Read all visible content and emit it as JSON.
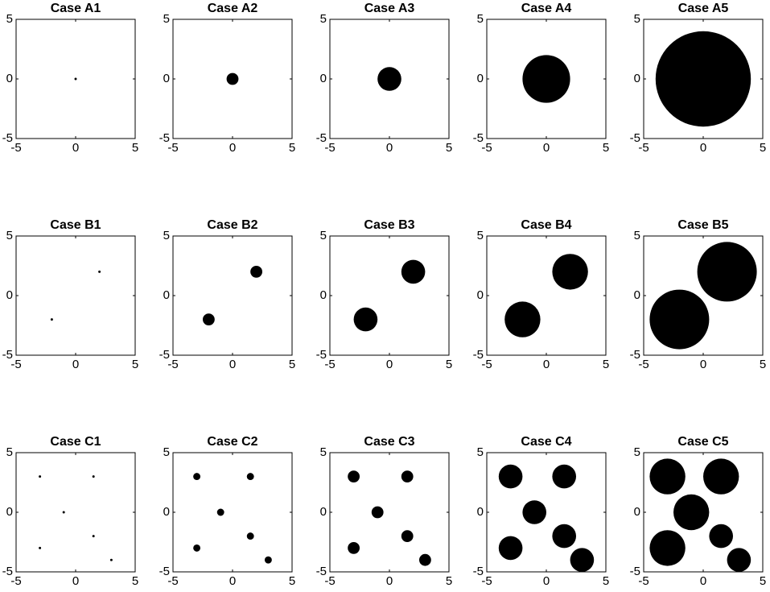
{
  "chart_data": [
    {
      "type": "scatter",
      "title": "Case A1",
      "x": [
        0
      ],
      "y": [
        0
      ],
      "sizes": [
        0.1
      ],
      "color": "#000000",
      "xlim": [
        -5,
        5
      ],
      "ylim": [
        -5,
        5
      ],
      "xticks": [
        -5,
        0,
        5
      ],
      "yticks": [
        -5,
        0,
        5
      ]
    },
    {
      "type": "scatter",
      "title": "Case A2",
      "x": [
        0
      ],
      "y": [
        0
      ],
      "sizes": [
        0.5
      ],
      "color": "#000000",
      "xlim": [
        -5,
        5
      ],
      "ylim": [
        -5,
        5
      ],
      "xticks": [
        -5,
        0,
        5
      ],
      "yticks": [
        -5,
        0,
        5
      ]
    },
    {
      "type": "scatter",
      "title": "Case A3",
      "x": [
        0
      ],
      "y": [
        0
      ],
      "sizes": [
        1
      ],
      "color": "#000000",
      "xlim": [
        -5,
        5
      ],
      "ylim": [
        -5,
        5
      ],
      "xticks": [
        -5,
        0,
        5
      ],
      "yticks": [
        -5,
        0,
        5
      ]
    },
    {
      "type": "scatter",
      "title": "Case A4",
      "x": [
        0
      ],
      "y": [
        0
      ],
      "sizes": [
        2
      ],
      "color": "#000000",
      "xlim": [
        -5,
        5
      ],
      "ylim": [
        -5,
        5
      ],
      "xticks": [
        -5,
        0,
        5
      ],
      "yticks": [
        -5,
        0,
        5
      ]
    },
    {
      "type": "scatter",
      "title": "Case A5",
      "x": [
        0
      ],
      "y": [
        0
      ],
      "sizes": [
        4
      ],
      "color": "#000000",
      "xlim": [
        -5,
        5
      ],
      "ylim": [
        -5,
        5
      ],
      "xticks": [
        -5,
        0,
        5
      ],
      "yticks": [
        -5,
        0,
        5
      ]
    },
    {
      "type": "scatter",
      "title": "Case B1",
      "x": [
        -2,
        2
      ],
      "y": [
        -2,
        2
      ],
      "sizes": [
        0.1,
        0.1
      ],
      "color": "#000000",
      "xlim": [
        -5,
        5
      ],
      "ylim": [
        -5,
        5
      ],
      "xticks": [
        -5,
        0,
        5
      ],
      "yticks": [
        -5,
        0,
        5
      ]
    },
    {
      "type": "scatter",
      "title": "Case B2",
      "x": [
        -2,
        2
      ],
      "y": [
        -2,
        2
      ],
      "sizes": [
        0.5,
        0.5
      ],
      "color": "#000000",
      "xlim": [
        -5,
        5
      ],
      "ylim": [
        -5,
        5
      ],
      "xticks": [
        -5,
        0,
        5
      ],
      "yticks": [
        -5,
        0,
        5
      ]
    },
    {
      "type": "scatter",
      "title": "Case B3",
      "x": [
        -2,
        2
      ],
      "y": [
        -2,
        2
      ],
      "sizes": [
        1,
        1
      ],
      "color": "#000000",
      "xlim": [
        -5,
        5
      ],
      "ylim": [
        -5,
        5
      ],
      "xticks": [
        -5,
        0,
        5
      ],
      "yticks": [
        -5,
        0,
        5
      ]
    },
    {
      "type": "scatter",
      "title": "Case B4",
      "x": [
        -2,
        2
      ],
      "y": [
        -2,
        2
      ],
      "sizes": [
        1.5,
        1.5
      ],
      "color": "#000000",
      "xlim": [
        -5,
        5
      ],
      "ylim": [
        -5,
        5
      ],
      "xticks": [
        -5,
        0,
        5
      ],
      "yticks": [
        -5,
        0,
        5
      ]
    },
    {
      "type": "scatter",
      "title": "Case B5",
      "x": [
        -2,
        2
      ],
      "y": [
        -2,
        2
      ],
      "sizes": [
        2.5,
        2.5
      ],
      "color": "#000000",
      "xlim": [
        -5,
        5
      ],
      "ylim": [
        -5,
        5
      ],
      "xticks": [
        -5,
        0,
        5
      ],
      "yticks": [
        -5,
        0,
        5
      ]
    },
    {
      "type": "scatter",
      "title": "Case C1",
      "x": [
        -3,
        1.5,
        -1,
        -3,
        1.5,
        3
      ],
      "y": [
        3,
        3,
        0,
        -3,
        -2,
        -4
      ],
      "sizes": [
        0.1,
        0.1,
        0.1,
        0.1,
        0.1,
        0.1
      ],
      "color": "#000000",
      "xlim": [
        -5,
        5
      ],
      "ylim": [
        -5,
        5
      ],
      "xticks": [
        -5,
        0,
        5
      ],
      "yticks": [
        -5,
        0,
        5
      ]
    },
    {
      "type": "scatter",
      "title": "Case C2",
      "x": [
        -3,
        1.5,
        -1,
        -3,
        1.5,
        3
      ],
      "y": [
        3,
        3,
        0,
        -3,
        -2,
        -4
      ],
      "sizes": [
        0.3,
        0.3,
        0.3,
        0.3,
        0.3,
        0.3
      ],
      "color": "#000000",
      "xlim": [
        -5,
        5
      ],
      "ylim": [
        -5,
        5
      ],
      "xticks": [
        -5,
        0,
        5
      ],
      "yticks": [
        -5,
        0,
        5
      ]
    },
    {
      "type": "scatter",
      "title": "Case C3",
      "x": [
        -3,
        1.5,
        -1,
        -3,
        1.5,
        3
      ],
      "y": [
        3,
        3,
        0,
        -3,
        -2,
        -4
      ],
      "sizes": [
        0.5,
        0.5,
        0.5,
        0.5,
        0.5,
        0.5
      ],
      "color": "#000000",
      "xlim": [
        -5,
        5
      ],
      "ylim": [
        -5,
        5
      ],
      "xticks": [
        -5,
        0,
        5
      ],
      "yticks": [
        -5,
        0,
        5
      ]
    },
    {
      "type": "scatter",
      "title": "Case C4",
      "x": [
        -3,
        1.5,
        -1,
        -3,
        1.5,
        3
      ],
      "y": [
        3,
        3,
        0,
        -3,
        -2,
        -4
      ],
      "sizes": [
        1,
        1,
        1,
        1,
        1,
        1
      ],
      "color": "#000000",
      "xlim": [
        -5,
        5
      ],
      "ylim": [
        -5,
        5
      ],
      "xticks": [
        -5,
        0,
        5
      ],
      "yticks": [
        -5,
        0,
        5
      ]
    },
    {
      "type": "scatter",
      "title": "Case C5",
      "x": [
        -3,
        1.5,
        -1,
        -3,
        1.5,
        3
      ],
      "y": [
        3,
        3,
        0,
        -3,
        -2,
        -4
      ],
      "sizes": [
        1.5,
        1.5,
        1.5,
        1.5,
        1,
        1
      ],
      "color": "#000000",
      "xlim": [
        -5,
        5
      ],
      "ylim": [
        -5,
        5
      ],
      "xticks": [
        -5,
        0,
        5
      ],
      "yticks": [
        -5,
        0,
        5
      ]
    }
  ]
}
